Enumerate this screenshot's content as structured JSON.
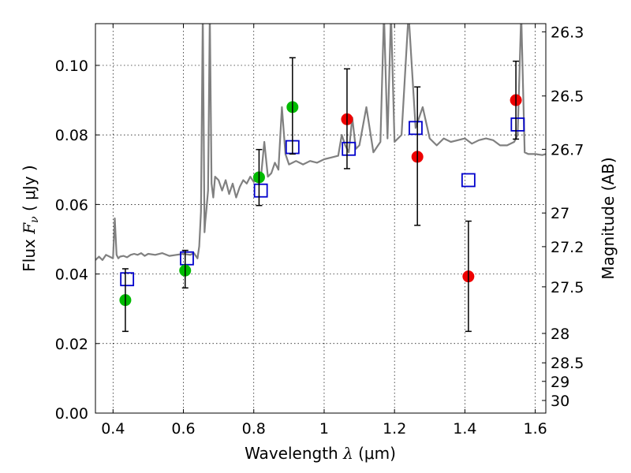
{
  "chart_data": {
    "type": "scatter",
    "xlabel_text": "Wavelength",
    "xlabel_symbol": "λ",
    "xlabel_unit": "(μm)",
    "ylabel_text": "Flux",
    "ylabel_symbol": "F",
    "ylabel_subscript": "ν",
    "ylabel_unit": "( μJy )",
    "y2label": "Magnitude (AB)",
    "xlim": [
      0.35,
      1.63
    ],
    "ylim": [
      0.0,
      0.112
    ],
    "grid": true,
    "x_ticks": [
      0.4,
      0.6,
      0.8,
      1.0,
      1.2,
      1.4,
      1.6
    ],
    "x_tick_labels": [
      "0.4",
      "0.6",
      "0.8",
      "1",
      "1.2",
      "1.4",
      "1.6"
    ],
    "y_ticks": [
      0.0,
      0.02,
      0.04,
      0.06,
      0.08,
      0.1
    ],
    "y_tick_labels": [
      "0.00",
      "0.02",
      "0.04",
      "0.06",
      "0.08",
      "0.10"
    ],
    "mag_ticks": [
      26.3,
      26.5,
      26.7,
      27,
      27.2,
      27.5,
      28,
      28.5,
      29,
      30
    ],
    "mag_tick_labels": [
      "26.3",
      "26.5",
      "26.7",
      "27",
      "27.2",
      "27.5",
      "28",
      "28.5",
      "29",
      "30"
    ],
    "series": [
      {
        "type": "line",
        "color": "#808080",
        "x": [
          0.35,
          0.36,
          0.37,
          0.38,
          0.39,
          0.4,
          0.405,
          0.41,
          0.415,
          0.42,
          0.43,
          0.44,
          0.45,
          0.46,
          0.47,
          0.48,
          0.49,
          0.5,
          0.52,
          0.54,
          0.56,
          0.58,
          0.6,
          0.62,
          0.63,
          0.64,
          0.645,
          0.65,
          0.655,
          0.66,
          0.662,
          0.665,
          0.67,
          0.675,
          0.68,
          0.685,
          0.69,
          0.7,
          0.71,
          0.72,
          0.73,
          0.74,
          0.75,
          0.76,
          0.77,
          0.78,
          0.79,
          0.8,
          0.81,
          0.82,
          0.83,
          0.84,
          0.85,
          0.86,
          0.87,
          0.88,
          0.89,
          0.9,
          0.92,
          0.94,
          0.96,
          0.98,
          1.0,
          1.02,
          1.04,
          1.05,
          1.06,
          1.07,
          1.08,
          1.09,
          1.1,
          1.12,
          1.14,
          1.16,
          1.17,
          1.18,
          1.19,
          1.2,
          1.22,
          1.24,
          1.26,
          1.28,
          1.3,
          1.32,
          1.34,
          1.36,
          1.38,
          1.4,
          1.42,
          1.44,
          1.46,
          1.48,
          1.5,
          1.52,
          1.54,
          1.55,
          1.56,
          1.57,
          1.58,
          1.59,
          1.6,
          1.62,
          1.63
        ],
        "y": [
          0.044,
          0.045,
          0.044,
          0.0455,
          0.045,
          0.0445,
          0.056,
          0.0455,
          0.0445,
          0.045,
          0.0452,
          0.0448,
          0.0455,
          0.0458,
          0.0455,
          0.046,
          0.0452,
          0.0458,
          0.0455,
          0.046,
          0.0452,
          0.0455,
          0.0458,
          0.0455,
          0.046,
          0.0445,
          0.048,
          0.058,
          0.115,
          0.052,
          0.055,
          0.058,
          0.064,
          0.115,
          0.066,
          0.062,
          0.068,
          0.067,
          0.064,
          0.067,
          0.063,
          0.066,
          0.062,
          0.065,
          0.067,
          0.066,
          0.068,
          0.0665,
          0.067,
          0.0675,
          0.078,
          0.068,
          0.069,
          0.072,
          0.07,
          0.088,
          0.0745,
          0.0715,
          0.0725,
          0.0715,
          0.0725,
          0.072,
          0.073,
          0.0735,
          0.074,
          0.08,
          0.077,
          0.075,
          0.085,
          0.076,
          0.077,
          0.088,
          0.075,
          0.078,
          0.115,
          0.079,
          0.115,
          0.078,
          0.08,
          0.115,
          0.082,
          0.088,
          0.079,
          0.077,
          0.079,
          0.078,
          0.0785,
          0.079,
          0.0775,
          0.0785,
          0.079,
          0.0785,
          0.077,
          0.077,
          0.078,
          0.08,
          0.115,
          0.075,
          0.0745,
          0.0745,
          0.0745,
          0.0742,
          0.0745
        ]
      },
      {
        "type": "open-square",
        "color": "#0000cc",
        "x": [
          0.44,
          0.61,
          0.82,
          0.91,
          1.07,
          1.26,
          1.41,
          1.55
        ],
        "y": [
          0.0385,
          0.0445,
          0.064,
          0.0765,
          0.076,
          0.082,
          0.067,
          0.083
        ]
      },
      {
        "type": "point",
        "color": "#00bb00",
        "x": [
          0.435,
          0.605,
          0.815,
          0.91
        ],
        "y": [
          0.0325,
          0.041,
          0.0678,
          0.088
        ]
      },
      {
        "type": "point",
        "color": "#ee0000",
        "x": [
          1.065,
          1.265,
          1.41,
          1.545
        ],
        "y": [
          0.0845,
          0.0737,
          0.0393,
          0.09
        ]
      },
      {
        "type": "errorbar",
        "color": "#000000",
        "x": [
          0.435,
          0.605,
          0.815,
          0.91,
          1.065,
          1.265,
          1.41,
          1.545
        ],
        "low": [
          0.0235,
          0.036,
          0.0597,
          0.0745,
          0.0703,
          0.054,
          0.0235,
          0.0788
        ],
        "high": [
          0.0415,
          0.0468,
          0.0758,
          0.1022,
          0.099,
          0.0938,
          0.0552,
          0.1012
        ]
      }
    ]
  }
}
